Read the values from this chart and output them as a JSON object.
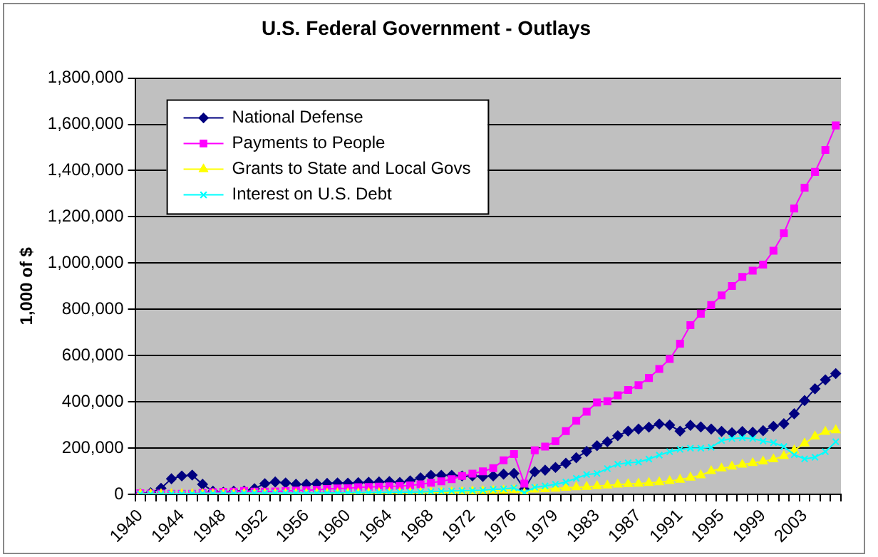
{
  "chart_data": {
    "type": "line",
    "title": "U.S. Federal Government - Outlays",
    "ylabel": "1,000 of $",
    "categories": [
      "1940",
      null,
      null,
      null,
      "1944",
      null,
      null,
      null,
      "1948",
      null,
      null,
      null,
      "1952",
      null,
      null,
      null,
      "1956",
      null,
      null,
      null,
      "1960",
      null,
      null,
      null,
      "1964",
      null,
      null,
      null,
      "1968",
      null,
      null,
      null,
      "1972",
      null,
      null,
      null,
      "1976",
      null,
      null,
      null,
      "1979",
      null,
      null,
      null,
      "1983",
      null,
      null,
      null,
      "1987",
      null,
      null,
      null,
      "1991",
      null,
      null,
      null,
      "1995",
      null,
      null,
      null,
      "1999",
      null,
      null,
      null,
      "2003",
      null,
      null,
      null
    ],
    "series": [
      {
        "name": "National Defense",
        "color": "#000080",
        "marker": "diamond",
        "values": [
          2000,
          6000,
          26000,
          67000,
          79000,
          83000,
          43000,
          13000,
          9000,
          13000,
          14000,
          24000,
          46000,
          53000,
          49000,
          43000,
          43000,
          45000,
          47000,
          49000,
          48000,
          50000,
          52000,
          53000,
          55000,
          51000,
          58000,
          71000,
          82000,
          82000,
          82000,
          79000,
          79000,
          77000,
          79000,
          87000,
          90000,
          22000,
          97000,
          104000,
          116000,
          134000,
          158000,
          185000,
          210000,
          227000,
          253000,
          273000,
          282000,
          290000,
          304000,
          299000,
          273000,
          298000,
          291000,
          282000,
          272000,
          266000,
          271000,
          268000,
          275000,
          294000,
          305000,
          348000,
          405000,
          456000,
          495000,
          522000
        ]
      },
      {
        "name": "Payments to People",
        "color": "#ff00ff",
        "marker": "square",
        "values": [
          4000,
          3000,
          3000,
          2000,
          2000,
          2000,
          6000,
          9000,
          10000,
          11000,
          14000,
          11000,
          11000,
          12000,
          14000,
          16000,
          17000,
          19000,
          23000,
          25000,
          26000,
          30000,
          31000,
          33000,
          34000,
          35000,
          38000,
          43000,
          50000,
          56000,
          65000,
          79000,
          89000,
          99000,
          113000,
          147000,
          174000,
          46000,
          190000,
          206000,
          229000,
          273000,
          318000,
          357000,
          397000,
          402000,
          428000,
          451000,
          472000,
          503000,
          542000,
          585000,
          651000,
          731000,
          781000,
          818000,
          860000,
          901000,
          940000,
          967000,
          993000,
          1053000,
          1129000,
          1236000,
          1326000,
          1394000,
          1489000,
          1595000
        ]
      },
      {
        "name": "Grants to State and Local Govs",
        "color": "#ffff00",
        "marker": "triangle",
        "values": [
          1000,
          1000,
          1000,
          1000,
          1000,
          1000,
          1000,
          1000,
          1000,
          1000,
          2000,
          2000,
          2000,
          2000,
          2000,
          2000,
          2000,
          3000,
          3000,
          4000,
          4000,
          4000,
          5000,
          5000,
          6000,
          6000,
          7000,
          7000,
          8000,
          8000,
          9000,
          10000,
          12000,
          14000,
          15000,
          16000,
          18000,
          5000,
          20000,
          22000,
          24000,
          28000,
          30000,
          32000,
          35000,
          38000,
          42000,
          44000,
          46000,
          49000,
          52000,
          57000,
          63000,
          72000,
          82000,
          100000,
          112000,
          120000,
          128000,
          135000,
          142000,
          151000,
          165000,
          190000,
          220000,
          250000,
          270000,
          277000
        ]
      },
      {
        "name": "Interest on U.S. Debt",
        "color": "#00ffff",
        "marker": "cross",
        "values": [
          1000,
          1000,
          1000,
          2000,
          2000,
          3000,
          4000,
          4000,
          4000,
          4000,
          5000,
          5000,
          5000,
          5000,
          5000,
          5000,
          5000,
          5000,
          6000,
          6000,
          7000,
          7000,
          7000,
          8000,
          8000,
          9000,
          9000,
          10000,
          11000,
          13000,
          14000,
          15000,
          16000,
          17000,
          21000,
          23000,
          27000,
          7000,
          30000,
          36000,
          43000,
          53000,
          69000,
          85000,
          90000,
          111000,
          130000,
          136000,
          139000,
          152000,
          169000,
          184000,
          194000,
          199000,
          199000,
          203000,
          232000,
          241000,
          244000,
          241000,
          230000,
          223000,
          206000,
          171000,
          153000,
          160000,
          184000,
          227000
        ]
      }
    ],
    "ylim": [
      0,
      1800000
    ],
    "yticks": [
      0,
      {
        "value": 200000,
        "label": "200,000"
      },
      {
        "value": 400000,
        "label": "400,000"
      },
      {
        "value": 600000,
        "label": "600,000"
      },
      {
        "value": 800000,
        "label": "800,000"
      },
      {
        "value": 1000000,
        "label": "1,000,000"
      },
      {
        "value": 1200000,
        "label": "1,200,000"
      },
      {
        "value": 1400000,
        "label": "1,400,000"
      },
      {
        "value": 1600000,
        "label": "1,600,000"
      },
      {
        "value": 1800000,
        "label": "1,800,000"
      }
    ],
    "grid": "y",
    "legend": "top left"
  }
}
